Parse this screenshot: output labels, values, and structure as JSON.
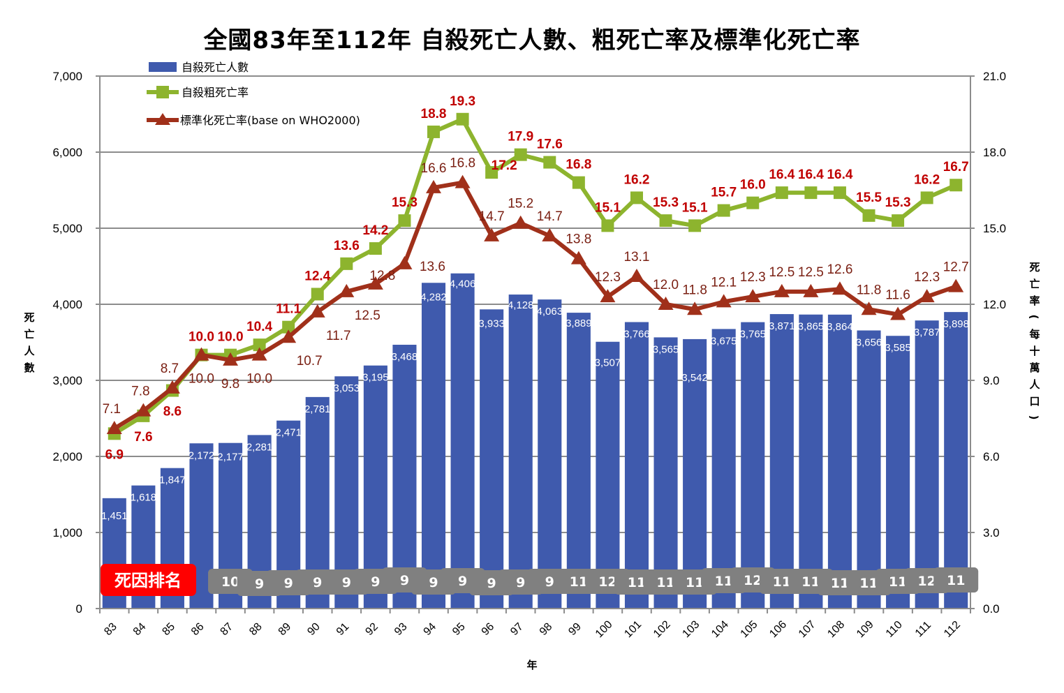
{
  "chart_data": {
    "type": "bar",
    "title": "全國83年至112年 自殺死亡人數、粗死亡率及標準化死亡率",
    "xlabel": "年",
    "ylabel": "死亡人數",
    "y2label": "死亡率(每十萬人口)",
    "ylim": [
      0,
      7000
    ],
    "y2lim": [
      0,
      21.0
    ],
    "yticks": [
      "0",
      "1,000",
      "2,000",
      "3,000",
      "4,000",
      "5,000",
      "6,000",
      "7,000"
    ],
    "y2ticks": [
      "0.0",
      "3.0",
      "6.0",
      "9.0",
      "12.0",
      "15.0",
      "18.0",
      "21.0"
    ],
    "grid": true,
    "legend_position": "top-left",
    "categories": [
      "83",
      "84",
      "85",
      "86",
      "87",
      "88",
      "89",
      "90",
      "91",
      "92",
      "93",
      "94",
      "95",
      "96",
      "97",
      "98",
      "99",
      "100",
      "101",
      "102",
      "103",
      "104",
      "105",
      "106",
      "107",
      "108",
      "109",
      "110",
      "111",
      "112"
    ],
    "series": [
      {
        "name": "自殺死亡人數",
        "type": "bar",
        "axis": "left",
        "color": "#3f5aad",
        "values": [
          1451,
          1618,
          1847,
          2172,
          2177,
          2281,
          2471,
          2781,
          3053,
          3195,
          3468,
          4282,
          4406,
          3933,
          4128,
          4063,
          3889,
          3507,
          3766,
          3565,
          3542,
          3675,
          3765,
          3871,
          3865,
          3864,
          3656,
          3585,
          3787,
          3898
        ],
        "labels": [
          "1,451",
          "1,618",
          "1,847",
          "2,172",
          "2,177",
          "2,281",
          "2,471",
          "2,781",
          "3,053",
          "3,195",
          "3,468",
          "4,282",
          "4,406",
          "3,933",
          "4,128",
          "4,063",
          "3,889",
          "3,507",
          "3,766",
          "3,565",
          "3,542",
          "3,675",
          "3,765",
          "3,871",
          "3,865",
          "3,864",
          "3,656",
          "3,585",
          "3,787",
          "3,898"
        ]
      },
      {
        "name": "自殺粗死亡率",
        "type": "line",
        "marker": "square",
        "axis": "right",
        "color": "#8db42e",
        "label_color": "#c00000",
        "values": [
          6.9,
          7.6,
          8.6,
          10.0,
          10.0,
          10.4,
          11.1,
          12.4,
          13.6,
          14.2,
          15.3,
          18.8,
          19.3,
          17.2,
          17.9,
          17.6,
          16.8,
          15.1,
          16.2,
          15.3,
          15.1,
          15.7,
          16.0,
          16.4,
          16.4,
          16.4,
          15.5,
          15.3,
          16.2,
          16.7
        ]
      },
      {
        "name": "標準化死亡率(base on WHO2000)",
        "type": "line",
        "marker": "triangle",
        "axis": "right",
        "color": "#a0301a",
        "label_color": "#7a1f12",
        "values": [
          7.1,
          7.8,
          8.7,
          10.0,
          9.8,
          10.0,
          10.7,
          11.7,
          12.5,
          12.8,
          13.6,
          16.6,
          16.8,
          14.7,
          15.2,
          14.7,
          13.8,
          12.3,
          13.1,
          12.0,
          11.8,
          12.1,
          12.3,
          12.5,
          12.5,
          12.6,
          11.8,
          11.6,
          12.3,
          12.7
        ]
      }
    ],
    "annotations": {
      "rank_title": "死因排名",
      "rank_title_color": "#ff0000",
      "rank_box_color": "#808080",
      "death_cause_rank": [
        null,
        null,
        null,
        null,
        "10",
        "9",
        "9",
        "9",
        "9",
        "9",
        "9",
        "9",
        "9",
        "9",
        "9",
        "9",
        "11",
        "12",
        "11",
        "11",
        "11",
        "11",
        "12",
        "11",
        "11",
        "11",
        "11",
        "11",
        "12",
        "11"
      ]
    }
  }
}
